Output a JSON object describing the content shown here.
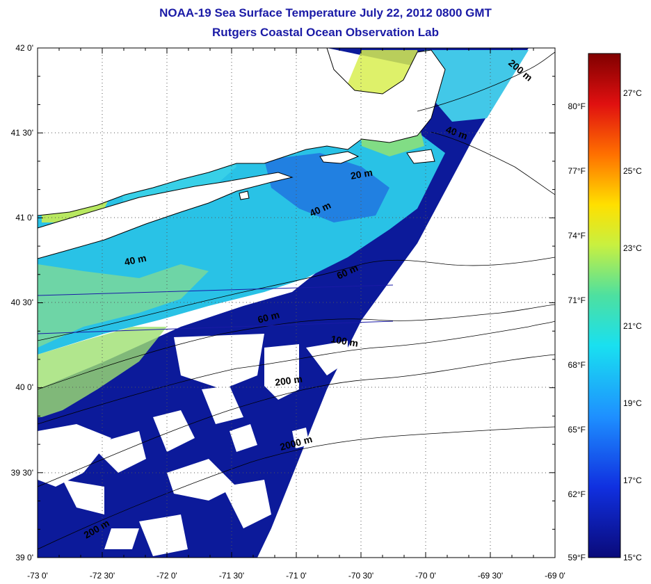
{
  "title": "NOAA-19 Sea Surface Temperature July 22, 2012 0800 GMT",
  "subtitle": "Rutgers Coastal Ocean Observation Lab",
  "map": {
    "lon_ticks": [
      "-73 0'",
      "-72 30'",
      "-72 0'",
      "-71 30'",
      "-71 0'",
      "-70 30'",
      "-70 0'",
      "-69 30'",
      "-69 0'"
    ],
    "lat_ticks": [
      "42 0'",
      "41 30'",
      "41 0'",
      "40 30'",
      "40 0'",
      "39 30'",
      "39 0'"
    ],
    "lon_range": [
      -73.0,
      -69.0
    ],
    "lat_range": [
      39.0,
      42.0
    ],
    "grid": true,
    "isobath_labels": [
      "200 m",
      "40 m",
      "20 m",
      "40 m",
      "40 m",
      "60 m",
      "60 m",
      "100 m",
      "200 m",
      "2000 m",
      "200 m"
    ]
  },
  "colorbar": {
    "fahrenheit": [
      "80°F",
      "77°F",
      "74°F",
      "71°F",
      "68°F",
      "65°F",
      "62°F",
      "59°F"
    ],
    "celsius": [
      "27°C",
      "25°C",
      "23°C",
      "21°C",
      "19°C",
      "17°C",
      "15°C"
    ],
    "range_c": [
      15,
      28
    ],
    "colors": [
      "#0a0a7a",
      "#1030e0",
      "#1e90ff",
      "#19e0f0",
      "#4de0a0",
      "#c8f040",
      "#ffe000",
      "#ff7000",
      "#e01010",
      "#800000"
    ]
  }
}
